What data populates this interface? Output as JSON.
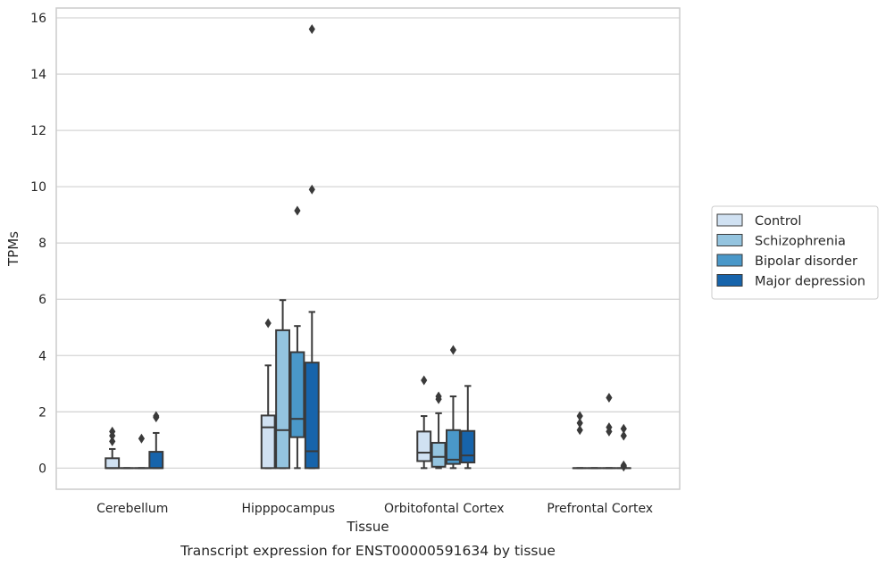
{
  "chart_data": {
    "type": "box",
    "caption": "Transcript expression for ENST00000591634 by tissue",
    "xlabel": "Tissue",
    "ylabel": "TPMs",
    "ylim": [
      -0.75,
      16.35
    ],
    "yticks": [
      0,
      2,
      4,
      6,
      8,
      10,
      12,
      14,
      16
    ],
    "grid": true,
    "legend_position": "right",
    "categories": [
      "Cerebellum",
      "Hipppocampus",
      "Orbitofontal Cortex",
      "Prefrontal Cortex"
    ],
    "series": [
      {
        "name": "Control",
        "color": "#d0e1f2",
        "boxes": [
          {
            "q1": 0,
            "median": 0,
            "q3": 0.35,
            "whislo": 0,
            "whishi": 0.68,
            "fliers": [
              0.95,
              1.15,
              1.3
            ]
          },
          {
            "q1": 0,
            "median": 1.45,
            "q3": 1.87,
            "whislo": 0,
            "whishi": 3.65,
            "fliers": [
              5.15
            ]
          },
          {
            "q1": 0.25,
            "median": 0.55,
            "q3": 1.3,
            "whislo": 0,
            "whishi": 1.85,
            "fliers": [
              3.12
            ]
          },
          {
            "q1": 0,
            "median": 0,
            "q3": 0,
            "whislo": 0,
            "whishi": 0,
            "fliers": [
              1.35,
              1.6,
              1.85
            ]
          }
        ]
      },
      {
        "name": "Schizophrenia",
        "color": "#94c4df",
        "boxes": [
          {
            "q1": 0,
            "median": 0,
            "q3": 0,
            "whislo": 0,
            "whishi": 0,
            "fliers": []
          },
          {
            "q1": 0,
            "median": 1.35,
            "q3": 4.9,
            "whislo": 0,
            "whishi": 5.97,
            "fliers": []
          },
          {
            "q1": 0.05,
            "median": 0.4,
            "q3": 0.9,
            "whislo": 0,
            "whishi": 1.95,
            "fliers": [
              2.45,
              2.55
            ]
          },
          {
            "q1": 0,
            "median": 0,
            "q3": 0,
            "whislo": 0,
            "whishi": 0,
            "fliers": []
          }
        ]
      },
      {
        "name": "Bipolar disorder",
        "color": "#4a98c9",
        "boxes": [
          {
            "q1": 0,
            "median": 0,
            "q3": 0,
            "whislo": 0,
            "whishi": 0,
            "fliers": [
              1.05
            ]
          },
          {
            "q1": 1.1,
            "median": 1.75,
            "q3": 4.12,
            "whislo": 0,
            "whishi": 5.05,
            "fliers": [
              9.15
            ]
          },
          {
            "q1": 0.15,
            "median": 0.3,
            "q3": 1.35,
            "whislo": 0,
            "whishi": 2.55,
            "fliers": [
              4.2
            ]
          },
          {
            "q1": 0,
            "median": 0,
            "q3": 0,
            "whislo": 0,
            "whishi": 0,
            "fliers": [
              1.3,
              1.45,
              2.5
            ]
          }
        ]
      },
      {
        "name": "Major depression",
        "color": "#1764ab",
        "boxes": [
          {
            "q1": 0,
            "median": 0,
            "q3": 0.58,
            "whislo": 0,
            "whishi": 1.25,
            "fliers": [
              1.8,
              1.85
            ]
          },
          {
            "q1": 0,
            "median": 0.6,
            "q3": 3.75,
            "whislo": 0,
            "whishi": 5.55,
            "fliers": [
              9.9,
              15.6
            ]
          },
          {
            "q1": 0.2,
            "median": 0.45,
            "q3": 1.32,
            "whislo": 0,
            "whishi": 2.92,
            "fliers": []
          },
          {
            "q1": 0,
            "median": 0,
            "q3": 0,
            "whislo": 0,
            "whishi": 0,
            "fliers": [
              0.05,
              0.1,
              1.15,
              1.4
            ]
          }
        ]
      }
    ],
    "colors": {
      "grid": "#d5d5d5",
      "frame": "#cccccc",
      "stroke": "#3a3a3a"
    }
  }
}
